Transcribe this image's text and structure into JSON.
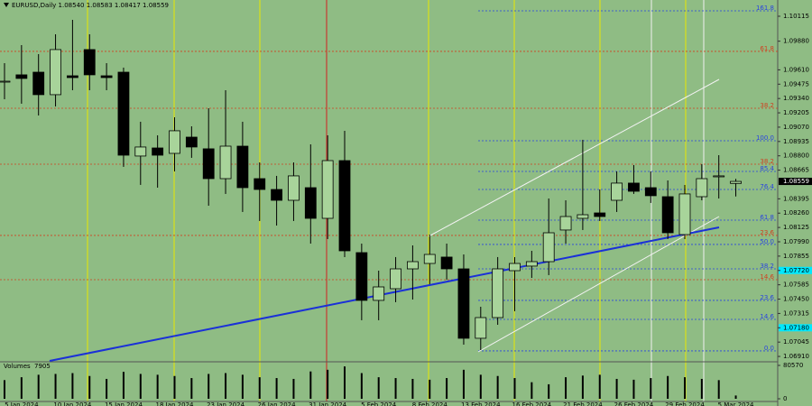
{
  "chart_data": {
    "type": "candlestick",
    "title": "EURUSD,Daily  1.08540 1.08583 1.08417 1.08559",
    "categories": [
      null,
      "5 Jan 2024",
      null,
      null,
      "10 Jan 2024",
      null,
      null,
      "15 Jan 2024",
      null,
      null,
      "18 Jan 2024",
      null,
      null,
      "23 Jan 2024",
      null,
      null,
      "26 Jan 2024",
      null,
      null,
      "31 Jan 2024",
      null,
      null,
      "5 Feb 2024",
      null,
      null,
      "8 Feb 2024",
      null,
      null,
      "13 Feb 2024",
      null,
      null,
      "16 Feb 2024",
      null,
      null,
      "21 Feb 2024",
      null,
      null,
      "26 Feb 2024",
      null,
      null,
      "29 Feb 2024",
      null,
      null,
      "5 Mar 2024"
    ],
    "open": [
      1.09503,
      1.09563,
      1.09588,
      1.09376,
      1.09554,
      1.09801,
      1.09554,
      1.09588,
      1.08798,
      1.08874,
      1.08823,
      1.08976,
      1.08866,
      1.08585,
      1.08891,
      1.08585,
      1.08483,
      1.08381,
      1.085,
      1.08211,
      1.08755,
      1.07888,
      1.07438,
      1.07548,
      1.07735,
      1.07786,
      1.07846,
      1.07735,
      1.07081,
      1.07276,
      1.07718,
      1.07761,
      1.07803,
      1.08101,
      1.08211,
      1.08262,
      1.08381,
      1.08543,
      1.085,
      1.08415,
      1.08058,
      1.08415,
      1.08602,
      1.0854
    ],
    "high": [
      1.09673,
      1.09843,
      1.09758,
      1.09945,
      1.10081,
      1.09945,
      1.09673,
      1.09631,
      1.09121,
      1.08993,
      1.09163,
      1.09078,
      1.09248,
      1.09418,
      1.09121,
      1.08738,
      1.08611,
      1.08738,
      1.08908,
      1.08993,
      1.09036,
      1.07973,
      1.07718,
      1.07846,
      1.07956,
      1.08058,
      1.07973,
      1.07871,
      1.07378,
      1.07846,
      1.07846,
      1.07905,
      1.08398,
      1.08381,
      1.08951,
      1.08483,
      1.08653,
      1.08713,
      1.08653,
      1.08568,
      1.08526,
      1.08721,
      1.08806,
      1.08583
    ],
    "low": [
      1.09333,
      1.09291,
      1.0918,
      1.09265,
      1.09418,
      1.09418,
      1.09418,
      1.08696,
      1.08526,
      1.085,
      1.08653,
      1.08781,
      1.0833,
      1.08441,
      1.08271,
      1.08186,
      1.08143,
      1.08186,
      1.07973,
      1.08016,
      1.07846,
      1.07251,
      1.07251,
      1.07421,
      1.07446,
      1.07591,
      1.07633,
      1.07021,
      1.0697,
      1.07208,
      1.07336,
      1.0765,
      1.07676,
      1.07973,
      1.08101,
      1.08186,
      1.08271,
      1.08441,
      1.08356,
      1.08016,
      1.08016,
      1.08381,
      1.08398,
      1.08417
    ],
    "close": [
      1.09503,
      1.09529,
      1.09376,
      1.09801,
      1.09537,
      1.09563,
      1.09537,
      1.08806,
      1.08883,
      1.08806,
      1.09036,
      1.08883,
      1.08585,
      1.08891,
      1.085,
      1.08483,
      1.08381,
      1.08611,
      1.08211,
      1.08755,
      1.07905,
      1.07438,
      1.07565,
      1.07735,
      1.07803,
      1.07871,
      1.07735,
      1.07081,
      1.07276,
      1.07735,
      1.07786,
      1.07803,
      1.08075,
      1.08228,
      1.08245,
      1.08228,
      1.08543,
      1.08466,
      1.08424,
      1.08075,
      1.08441,
      1.08585,
      1.08611,
      1.08559
    ],
    "up_color": "#a8d49a",
    "down_color": "#000000",
    "ylim": [
      1.06868,
      1.10268
    ],
    "yticks": [
      1.10115,
      {
        "value": 1.0988,
        "label": "1.09880"
      },
      {
        "value": 1.0961,
        "label": "1.09610"
      },
      1.09475,
      {
        "value": 1.0934,
        "label": "1.09340"
      },
      1.09205,
      {
        "value": 1.0907,
        "label": "1.09070"
      },
      1.08935,
      {
        "value": 1.088,
        "label": "1.08800"
      },
      1.08665,
      1.08395,
      {
        "value": 1.0826,
        "label": "1.08260"
      },
      1.08125,
      {
        "value": 1.0799,
        "label": "1.07990"
      },
      1.07855,
      {
        "value": 1.0772,
        "label": "1.07720",
        "highlight": true
      },
      1.07585,
      {
        "value": 1.0745,
        "label": "1.07450"
      },
      1.07315,
      {
        "value": 1.0718,
        "label": "1.07180",
        "highlight": true
      },
      1.07045,
      {
        "value": 1.0691,
        "label": "1.06910"
      }
    ],
    "highlight_color": "#00e8ff",
    "fib_levels": [
      {
        "label": "161.8",
        "value": 1.10166,
        "color": "#2a44e0"
      },
      {
        "label": "100.0",
        "value": 1.08942,
        "color": "#2a44e0"
      },
      {
        "label": "85.4",
        "value": 1.08653,
        "color": "#2a44e0"
      },
      {
        "label": "76.4",
        "value": 1.08483,
        "color": "#2a44e0"
      },
      {
        "label": "61.8",
        "value": 1.08194,
        "color": "#2a44e0"
      },
      {
        "label": "50.0",
        "value": 1.07965,
        "color": "#2a44e0"
      },
      {
        "label": "38.2",
        "value": 1.07735,
        "color": "#2a44e0"
      },
      {
        "label": "23.6",
        "value": 1.07438,
        "color": "#2a44e0"
      },
      {
        "label": "14.6",
        "value": 1.07259,
        "color": "#2a44e0"
      },
      {
        "label": "0.0",
        "value": 1.06962,
        "color": "#2a44e0"
      },
      {
        "label": "61.8",
        "value": 1.09784,
        "color": "#d04020"
      },
      {
        "label": "38.2",
        "value": 1.09248,
        "color": "#d04020"
      },
      {
        "label": "38.2",
        "value": 1.08721,
        "color": "#d04020"
      },
      {
        "label": "23.6",
        "value": 1.0805,
        "color": "#d04020"
      },
      {
        "label": "14.6",
        "value": 1.07633,
        "color": "#d04020"
      }
    ],
    "volume_title": "Volumes",
    "volumes": [
      45000,
      52000,
      58000,
      60000,
      62000,
      55000,
      48000,
      65000,
      60000,
      58000,
      55000,
      50000,
      60000,
      62000,
      58000,
      52000,
      50000,
      48000,
      66000,
      70000,
      78000,
      62000,
      52000,
      50000,
      48000,
      46000,
      50000,
      70000,
      58000,
      55000,
      50000,
      40000,
      35000,
      52000,
      56000,
      58000,
      48000,
      46000,
      50000,
      55000,
      52000,
      48000,
      45000,
      7905
    ],
    "volume_color": "#000000",
    "y2lim": [
      0,
      80570
    ],
    "y2ticks": [
      0,
      80570
    ]
  }
}
